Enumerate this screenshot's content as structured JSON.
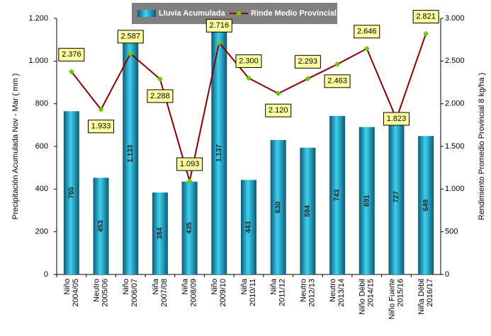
{
  "chart_data": {
    "type": "bar-line",
    "legend": "top",
    "categories": [
      [
        "Niño",
        "2004/05"
      ],
      [
        "Neutro",
        "2005/06"
      ],
      [
        "Niño",
        "2006/07"
      ],
      [
        "Niña",
        "2007/08"
      ],
      [
        "Niña",
        "2008/09"
      ],
      [
        "Niño",
        "2009/10"
      ],
      [
        "Niña",
        "2010/11"
      ],
      [
        "Niña",
        "2011/12"
      ],
      [
        "Neutro",
        "2012/13"
      ],
      [
        "Neutro",
        "2013/14"
      ],
      [
        "Niño Débil",
        "2014/15"
      ],
      [
        "Niño Fuerte",
        "2015/16"
      ],
      [
        "Niña Débil",
        "2016/17"
      ]
    ],
    "ylabel": "Precipitación Acumulada Nov - Mar ( mm )",
    "y2label": "Rendimiento Promedio Provincial 8 kg/ha )",
    "ylim": [
      0,
      1200
    ],
    "yticks": [
      0,
      200,
      400,
      600,
      800,
      {
        "value": 1000,
        "label": "1.000"
      },
      {
        "value": 1200,
        "label": "1.200"
      }
    ],
    "y2lim": [
      0,
      3000
    ],
    "y2ticks": [
      0,
      500,
      {
        "value": 1000,
        "label": "1.000"
      },
      {
        "value": 1500,
        "label": "1.500"
      },
      {
        "value": 2000,
        "label": "2.000"
      },
      {
        "value": 2500,
        "label": "2.500"
      },
      {
        "value": 3000,
        "label": "3.000"
      }
    ],
    "series": [
      {
        "name": "Lluvia Acumulada",
        "type": "bar",
        "color": "#1aa6c8",
        "values": [
          765,
          453,
          1133,
          384,
          435,
          1137,
          443,
          630,
          594,
          743,
          691,
          727,
          649
        ],
        "value_labels": [
          "765",
          "453",
          "1.133",
          "384",
          "435",
          "1.137",
          "443",
          "630",
          "594",
          "743",
          "691",
          "727",
          "649"
        ]
      },
      {
        "name": "Rinde Medio Provincial",
        "type": "line",
        "axis": "y2",
        "color": "#8b0000",
        "marker_color": "#66cc00",
        "values": [
          2376,
          1933,
          2587,
          2288,
          1093,
          2716,
          2300,
          2120,
          2293,
          2463,
          2646,
          1823,
          2821
        ],
        "value_labels": [
          "2.376",
          "1.933",
          "2.587",
          "2.288",
          "1.093",
          "2.716",
          "2.300",
          "2.120",
          "2.293",
          "2.463",
          "2.646",
          "1.823",
          "2.821"
        ]
      }
    ]
  }
}
